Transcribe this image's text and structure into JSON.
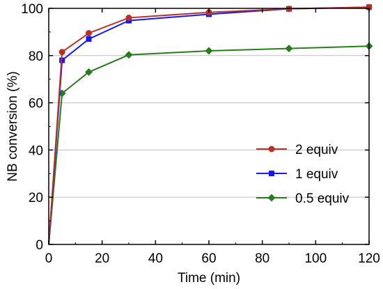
{
  "chart_data": {
    "type": "line",
    "title": "",
    "xlabel": "Time (min)",
    "ylabel": "NB conversion (%)",
    "xlim": [
      0,
      120
    ],
    "ylim": [
      0,
      100
    ],
    "x_ticks": [
      "0",
      "20",
      "40",
      "60",
      "80",
      "100",
      "120"
    ],
    "y_ticks": [
      "0",
      "20",
      "40",
      "60",
      "80",
      "100"
    ],
    "grid": "horizontal",
    "legend_position": "bottom-right",
    "x": [
      0,
      5,
      15,
      30,
      60,
      90,
      120
    ],
    "series": [
      {
        "name": "2 equiv",
        "color": "#b5322a",
        "marker": "circle",
        "values": [
          0,
          81.5,
          89.5,
          96,
          98.3,
          99.8,
          100.5
        ]
      },
      {
        "name": "1 equiv",
        "color": "#1818e8",
        "marker": "square",
        "values": [
          0,
          78,
          87,
          94.8,
          97.5,
          99.8,
          100.5
        ]
      },
      {
        "name": "0.5 equiv",
        "color": "#2a7a1e",
        "marker": "diamond",
        "values": [
          0,
          64,
          73,
          80.3,
          82,
          83,
          84
        ]
      }
    ]
  }
}
